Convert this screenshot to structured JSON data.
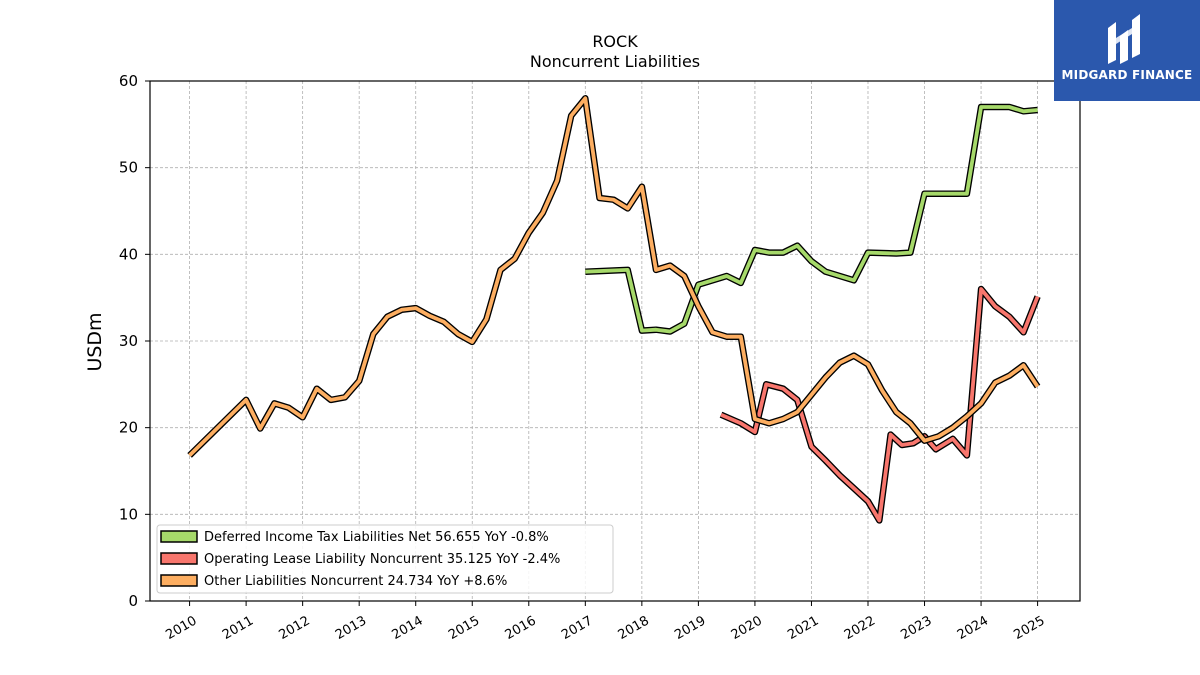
{
  "brand": {
    "name": "MIDGARD FINANCE"
  },
  "colors": {
    "deferred": "#a6d96a",
    "operating": "#f8766d",
    "other": "#fdae61",
    "outline": "#000000",
    "grid": "#b0b0b0",
    "brand_bg": "#2b58ad"
  },
  "chart_data": {
    "type": "line",
    "title": "ROCK",
    "subtitle": "Noncurrent  Liabilities",
    "xlabel": "",
    "ylabel": "USDm",
    "ylim": [
      0,
      60
    ],
    "xlim": [
      2009.3,
      2025.75
    ],
    "yticks": [
      "0",
      "10",
      "20",
      "30",
      "40",
      "50",
      "60"
    ],
    "xticks": [
      "2010",
      "2011",
      "2012",
      "2013",
      "2014",
      "2015",
      "2016",
      "2017",
      "2018",
      "2019",
      "2020",
      "2021",
      "2022",
      "2023",
      "2024",
      "2025"
    ],
    "grid": true,
    "legend_position": "lower-left",
    "series": [
      {
        "name": "Deferred Income Tax Liabilities Net  56.655 YoY -0.8%",
        "color_key": "deferred",
        "points": [
          [
            2017.0,
            38.0
          ],
          [
            2017.75,
            38.2
          ],
          [
            2018.0,
            31.2
          ],
          [
            2018.25,
            31.3
          ],
          [
            2018.5,
            31.1
          ],
          [
            2018.75,
            32.0
          ],
          [
            2019.0,
            36.5
          ],
          [
            2019.5,
            37.5
          ],
          [
            2019.75,
            36.7
          ],
          [
            2020.0,
            40.5
          ],
          [
            2020.25,
            40.2
          ],
          [
            2020.5,
            40.2
          ],
          [
            2020.75,
            41.0
          ],
          [
            2021.0,
            39.2
          ],
          [
            2021.25,
            38.0
          ],
          [
            2021.75,
            37.0
          ],
          [
            2022.0,
            40.2
          ],
          [
            2022.5,
            40.1
          ],
          [
            2022.75,
            40.2
          ],
          [
            2023.0,
            47.0
          ],
          [
            2023.75,
            47.0
          ],
          [
            2024.0,
            57.0
          ],
          [
            2024.5,
            57.0
          ],
          [
            2024.75,
            56.5
          ],
          [
            2025.0,
            56.655
          ]
        ]
      },
      {
        "name": "Operating Lease Liability Noncurrent  35.125 YoY -2.4%",
        "color_key": "operating",
        "points": [
          [
            2019.4,
            21.5
          ],
          [
            2019.75,
            20.5
          ],
          [
            2020.0,
            19.5
          ],
          [
            2020.2,
            25.0
          ],
          [
            2020.5,
            24.5
          ],
          [
            2020.75,
            23.2
          ],
          [
            2021.0,
            17.8
          ],
          [
            2021.25,
            16.2
          ],
          [
            2021.5,
            14.5
          ],
          [
            2021.75,
            13.0
          ],
          [
            2022.0,
            11.5
          ],
          [
            2022.2,
            9.3
          ],
          [
            2022.4,
            19.2
          ],
          [
            2022.6,
            18.0
          ],
          [
            2022.8,
            18.2
          ],
          [
            2023.0,
            19.0
          ],
          [
            2023.2,
            17.5
          ],
          [
            2023.5,
            18.7
          ],
          [
            2023.75,
            16.8
          ],
          [
            2024.0,
            36.0
          ],
          [
            2024.25,
            34.0
          ],
          [
            2024.5,
            32.8
          ],
          [
            2024.75,
            31.0
          ],
          [
            2025.0,
            35.125
          ]
        ]
      },
      {
        "name": "Other Liabilities Noncurrent  24.734 YoY +8.6%",
        "color_key": "other",
        "points": [
          [
            2010.0,
            16.8
          ],
          [
            2011.0,
            23.2
          ],
          [
            2011.25,
            19.9
          ],
          [
            2011.5,
            22.8
          ],
          [
            2011.75,
            22.3
          ],
          [
            2012.0,
            21.2
          ],
          [
            2012.25,
            24.5
          ],
          [
            2012.5,
            23.2
          ],
          [
            2012.75,
            23.5
          ],
          [
            2013.0,
            25.4
          ],
          [
            2013.25,
            30.8
          ],
          [
            2013.5,
            32.8
          ],
          [
            2013.75,
            33.6
          ],
          [
            2014.0,
            33.8
          ],
          [
            2014.25,
            32.9
          ],
          [
            2014.5,
            32.2
          ],
          [
            2014.75,
            30.8
          ],
          [
            2015.0,
            29.9
          ],
          [
            2015.25,
            32.5
          ],
          [
            2015.5,
            38.2
          ],
          [
            2015.75,
            39.5
          ],
          [
            2016.0,
            42.5
          ],
          [
            2016.25,
            44.8
          ],
          [
            2016.5,
            48.5
          ],
          [
            2016.75,
            56.0
          ],
          [
            2017.0,
            58.0
          ],
          [
            2017.25,
            46.5
          ],
          [
            2017.5,
            46.3
          ],
          [
            2017.75,
            45.3
          ],
          [
            2018.0,
            47.8
          ],
          [
            2018.25,
            38.2
          ],
          [
            2018.5,
            38.7
          ],
          [
            2018.75,
            37.5
          ],
          [
            2019.0,
            34.0
          ],
          [
            2019.25,
            31.0
          ],
          [
            2019.5,
            30.5
          ],
          [
            2019.75,
            30.5
          ],
          [
            2020.0,
            21.0
          ],
          [
            2020.25,
            20.5
          ],
          [
            2020.5,
            21.0
          ],
          [
            2020.75,
            21.8
          ],
          [
            2021.0,
            23.8
          ],
          [
            2021.25,
            25.8
          ],
          [
            2021.5,
            27.5
          ],
          [
            2021.75,
            28.3
          ],
          [
            2022.0,
            27.3
          ],
          [
            2022.25,
            24.3
          ],
          [
            2022.5,
            21.8
          ],
          [
            2022.75,
            20.5
          ],
          [
            2023.0,
            18.5
          ],
          [
            2023.25,
            19.0
          ],
          [
            2023.5,
            20.0
          ],
          [
            2023.75,
            21.3
          ],
          [
            2024.0,
            22.8
          ],
          [
            2024.25,
            25.2
          ],
          [
            2024.5,
            26.0
          ],
          [
            2024.75,
            27.2
          ],
          [
            2025.0,
            24.734
          ]
        ]
      }
    ]
  }
}
